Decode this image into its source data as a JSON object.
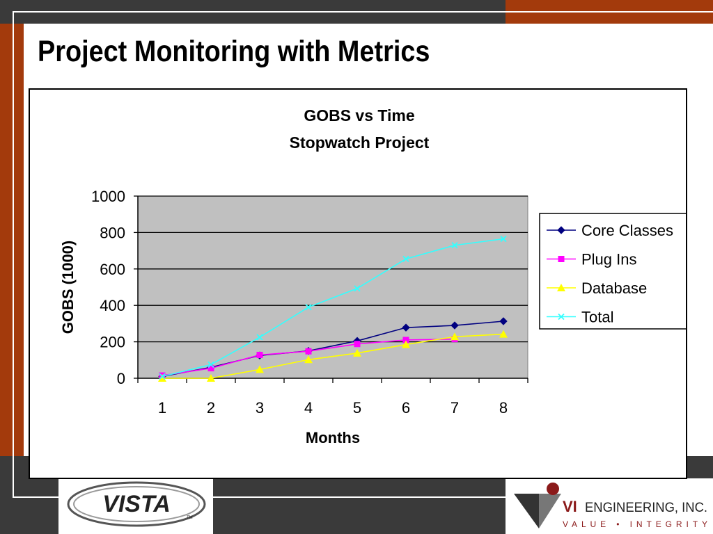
{
  "slide": {
    "title": "Project Monitoring with Metrics"
  },
  "colors": {
    "accent_orange": "#a33a0c",
    "dark_band": "#3a3a3a",
    "plot_bg": "#c0c0c0"
  },
  "chart_data": {
    "type": "line",
    "title": "GOBS vs Time",
    "subtitle": "Stopwatch Project",
    "xlabel": "Months",
    "ylabel": "GOBS (1000)",
    "categories": [
      "1",
      "2",
      "3",
      "4",
      "5",
      "6",
      "7",
      "8"
    ],
    "ylim": [
      0,
      1000
    ],
    "yticks": [
      0,
      200,
      400,
      600,
      800,
      1000
    ],
    "grid": true,
    "legend_position": "right",
    "series": [
      {
        "name": "Core Classes",
        "color": "#000080",
        "marker": "diamond",
        "values": [
          10,
          60,
          125,
          150,
          205,
          278,
          290,
          313
        ]
      },
      {
        "name": "Plug Ins",
        "color": "#ff00ff",
        "marker": "square",
        "values": [
          15,
          55,
          128,
          148,
          188,
          210,
          215,
          null
        ]
      },
      {
        "name": "Database",
        "color": "#ffff00",
        "marker": "triangle",
        "values": [
          0,
          0,
          48,
          102,
          138,
          185,
          228,
          242
        ]
      },
      {
        "name": "Total",
        "color": "#33ffff",
        "marker": "x",
        "values": [
          10,
          75,
          225,
          390,
          493,
          655,
          730,
          765
        ]
      }
    ]
  },
  "logos": {
    "vista_text": "VISTA",
    "vista_tm": "TM",
    "vi_company": "VI",
    "vi_engineering": "ENGINEERING, INC.",
    "vi_tagline": "VALUE • INTEGRITY"
  }
}
